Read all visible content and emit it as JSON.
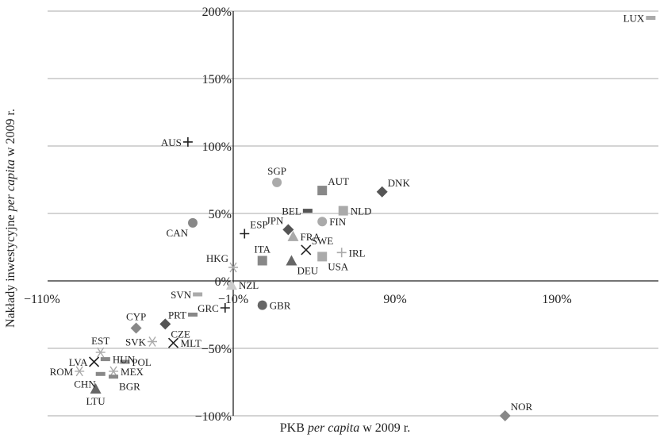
{
  "chart_data": {
    "type": "scatter",
    "title": "",
    "xlabel": "PKB per capita w 2009 r.",
    "ylabel": "Nakłady inwestycyjne per capita w 2009 r.",
    "xlabel_parts": [
      {
        "text": "PKB ",
        "italic": false
      },
      {
        "text": "per capita",
        "italic": true
      },
      {
        "text": " w 2009 r.",
        "italic": false
      }
    ],
    "ylabel_parts": [
      {
        "text": "Nakłady inwestycyjne ",
        "italic": false
      },
      {
        "text": "per capita",
        "italic": true
      },
      {
        "text": " w 2009 r.",
        "italic": false
      }
    ],
    "xlim": [
      -110,
      250
    ],
    "ylim": [
      -100,
      200
    ],
    "x_ticks": [
      {
        "value": -110,
        "label": "−110%"
      },
      {
        "value": -10,
        "label": "−10%"
      },
      {
        "value": 90,
        "label": "90%"
      },
      {
        "value": 190,
        "label": "190%"
      }
    ],
    "y_ticks": [
      {
        "value": -100,
        "label": "−100%"
      },
      {
        "value": -50,
        "label": "−50%"
      },
      {
        "value": 0,
        "label": "0%"
      },
      {
        "value": 50,
        "label": "50%"
      },
      {
        "value": 100,
        "label": "100%"
      },
      {
        "value": 150,
        "label": "150%"
      },
      {
        "value": 200,
        "label": "200%"
      }
    ],
    "grid": {
      "horizontal": true,
      "vertical": false
    },
    "colors": {
      "dark": "#666666",
      "light": "#b0b0b0",
      "mid": "#999999",
      "axis": "#222222",
      "grid": "#aaaaaa"
    },
    "points": [
      {
        "label": "LUX",
        "x": 248,
        "y": 195,
        "marker": "dash",
        "color": "#aaaaaa",
        "label_pos": "left"
      },
      {
        "label": "AUS",
        "x": -38,
        "y": 103,
        "marker": "plus",
        "color": "#222222",
        "label_pos": "left"
      },
      {
        "label": "SGP",
        "x": 17,
        "y": 73,
        "marker": "circle",
        "color": "#aaaaaa",
        "label_pos": "above"
      },
      {
        "label": "AUT",
        "x": 45,
        "y": 67,
        "marker": "square",
        "color": "#888888",
        "label_pos": "above-right"
      },
      {
        "label": "DNK",
        "x": 82,
        "y": 66,
        "marker": "diamond",
        "color": "#555555",
        "label_pos": "above-right"
      },
      {
        "label": "BEL",
        "x": 36,
        "y": 52,
        "marker": "dash",
        "color": "#555555",
        "label_pos": "left"
      },
      {
        "label": "NLD",
        "x": 58,
        "y": 52,
        "marker": "square",
        "color": "#aaaaaa",
        "label_pos": "right"
      },
      {
        "label": "CAN",
        "x": -35,
        "y": 43,
        "marker": "circle",
        "color": "#888888",
        "label_pos": "below-left"
      },
      {
        "label": "FIN",
        "x": 45,
        "y": 44,
        "marker": "circle",
        "color": "#aaaaaa",
        "label_pos": "right"
      },
      {
        "label": "JPN",
        "x": 24,
        "y": 38,
        "marker": "diamond",
        "color": "#555555",
        "label_pos": "above-left"
      },
      {
        "label": "ESP",
        "x": -3,
        "y": 35,
        "marker": "plus",
        "color": "#222222",
        "label_pos": "above-right"
      },
      {
        "label": "FRA",
        "x": 27,
        "y": 33,
        "marker": "triangle",
        "color": "#aaaaaa",
        "label_pos": "right"
      },
      {
        "label": "SWE",
        "x": 35,
        "y": 23,
        "marker": "x",
        "color": "#222222",
        "label_pos": "above-right"
      },
      {
        "label": "IRL",
        "x": 57,
        "y": 21,
        "marker": "plus",
        "color": "#aaaaaa",
        "label_pos": "right"
      },
      {
        "label": "USA",
        "x": 45,
        "y": 18,
        "marker": "square",
        "color": "#aaaaaa",
        "label_pos": "below-right"
      },
      {
        "label": "ITA",
        "x": 8,
        "y": 15,
        "marker": "square",
        "color": "#888888",
        "label_pos": "above"
      },
      {
        "label": "DEU",
        "x": 26,
        "y": 15,
        "marker": "triangle",
        "color": "#666666",
        "label_pos": "below-right"
      },
      {
        "label": "HKG",
        "x": -10,
        "y": 10,
        "marker": "asterisk",
        "color": "#aaaaaa",
        "label_pos": "above-left"
      },
      {
        "label": "NZL",
        "x": -11,
        "y": -3,
        "marker": "triangle",
        "color": "#cccccc",
        "label_pos": "right"
      },
      {
        "label": "SVN",
        "x": -32,
        "y": -10,
        "marker": "dash",
        "color": "#aaaaaa",
        "label_pos": "left"
      },
      {
        "label": "GRC",
        "x": -15,
        "y": -20,
        "marker": "plus",
        "color": "#222222",
        "label_pos": "left"
      },
      {
        "label": "GBR",
        "x": 8,
        "y": -18,
        "marker": "circle",
        "color": "#666666",
        "label_pos": "right"
      },
      {
        "label": "PRT",
        "x": -35,
        "y": -25,
        "marker": "dash",
        "color": "#888888",
        "label_pos": "left"
      },
      {
        "label": "CYP",
        "x": -70,
        "y": -35,
        "marker": "diamond",
        "color": "#888888",
        "label_pos": "above"
      },
      {
        "label": "CZE",
        "x": -52,
        "y": -32,
        "marker": "diamond",
        "color": "#555555",
        "label_pos": "below-right"
      },
      {
        "label": "SVK",
        "x": -60,
        "y": -45,
        "marker": "asterisk",
        "color": "#aaaaaa",
        "label_pos": "left"
      },
      {
        "label": "MLT",
        "x": -47,
        "y": -46,
        "marker": "x",
        "color": "#222222",
        "label_pos": "right"
      },
      {
        "label": "EST",
        "x": -92,
        "y": -53,
        "marker": "asterisk",
        "color": "#aaaaaa",
        "label_pos": "above"
      },
      {
        "label": "HUN",
        "x": -89,
        "y": -58,
        "marker": "dash",
        "color": "#888888",
        "label_pos": "right"
      },
      {
        "label": "LVA",
        "x": -96,
        "y": -60,
        "marker": "x",
        "color": "#222222",
        "label_pos": "left"
      },
      {
        "label": "POL",
        "x": -77,
        "y": -60,
        "marker": "dash",
        "color": "#888888",
        "label_pos": "right"
      },
      {
        "label": "ROM",
        "x": -105,
        "y": -67,
        "marker": "asterisk",
        "color": "#aaaaaa",
        "label_pos": "left"
      },
      {
        "label": "MEX",
        "x": -84,
        "y": -67,
        "marker": "asterisk",
        "color": "#aaaaaa",
        "label_pos": "right"
      },
      {
        "label": "CHN",
        "x": -92,
        "y": -69,
        "marker": "dash",
        "color": "#888888",
        "label_pos": "below-left"
      },
      {
        "label": "BGR",
        "x": -84,
        "y": -71,
        "marker": "dash",
        "color": "#888888",
        "label_pos": "below-right"
      },
      {
        "label": "LTU",
        "x": -95,
        "y": -80,
        "marker": "triangle",
        "color": "#666666",
        "label_pos": "below"
      },
      {
        "label": "NOR",
        "x": 158,
        "y": -100,
        "marker": "diamond",
        "color": "#888888",
        "label_pos": "above-right"
      }
    ]
  }
}
